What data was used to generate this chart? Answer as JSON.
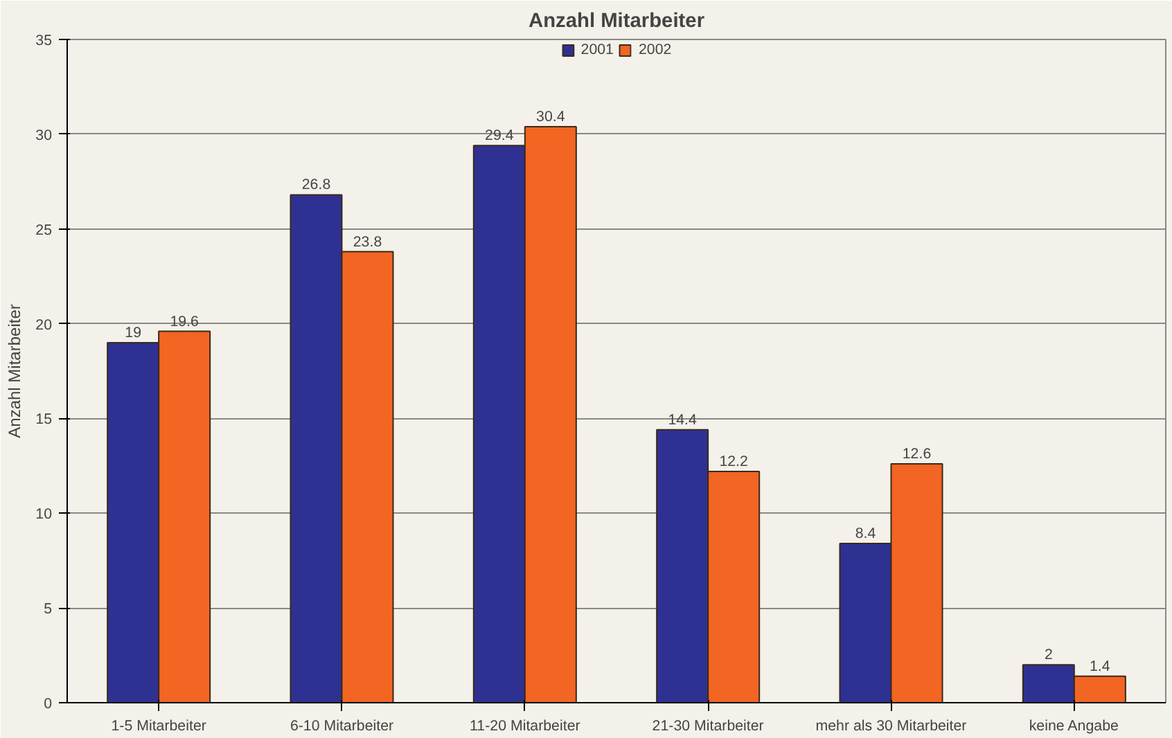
{
  "chart_data": {
    "type": "bar",
    "title": "Anzahl Mitarbeiter",
    "ylabel": "Anzahl Mitarbeiter",
    "categories": [
      "1-5 Mitarbeiter",
      "6-10 Mitarbeiter",
      "11-20 Mitarbeiter",
      "21-30 Mitarbeiter",
      "mehr als 30 Mitarbeiter",
      "keine Angabe"
    ],
    "series": [
      {
        "name": "2001",
        "color": "#2e3192",
        "values": [
          19,
          26.8,
          29.4,
          14.4,
          8.4,
          2
        ]
      },
      {
        "name": "2002",
        "color": "#f26522",
        "values": [
          19.6,
          23.8,
          30.4,
          12.2,
          12.6,
          1.4
        ]
      }
    ],
    "ylim": [
      0,
      35
    ],
    "yticks": [
      0,
      5,
      10,
      15,
      20,
      25,
      30,
      35
    ],
    "grid": "y",
    "legend": "top",
    "data_labels": true
  }
}
